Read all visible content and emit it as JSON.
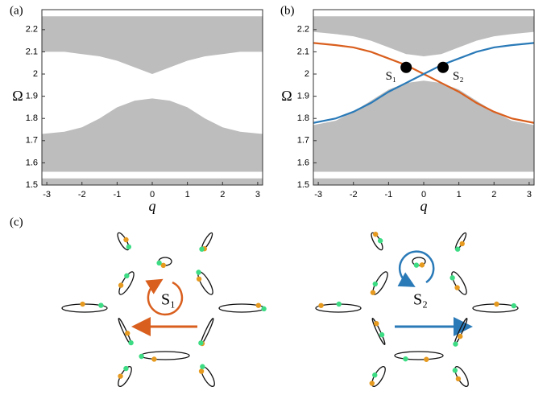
{
  "chart_data": [
    {
      "type": "band",
      "panel_label": "(a)",
      "x_label": "q",
      "y_label": "Ω",
      "xlim": [
        -3.14,
        3.14
      ],
      "ylim": [
        1.5,
        2.29
      ],
      "xticks": [
        -3,
        -2,
        -1,
        0,
        1,
        2,
        3
      ],
      "yticks": [
        1.5,
        1.6,
        1.7,
        1.8,
        1.9,
        2,
        2.1,
        2.2
      ],
      "band_color": "#bdbdbd",
      "x": [
        -3.14,
        -2.5,
        -2,
        -1.5,
        -1,
        -0.5,
        0,
        0.5,
        1,
        1.5,
        2,
        2.5,
        3.14
      ],
      "bands": [
        {
          "lower": [
            2.1,
            2.1,
            2.09,
            2.08,
            2.06,
            2.03,
            2.0,
            2.03,
            2.06,
            2.08,
            2.09,
            2.1,
            2.1
          ],
          "upper": [
            2.26,
            2.26,
            2.26,
            2.26,
            2.26,
            2.26,
            2.26,
            2.26,
            2.26,
            2.26,
            2.26,
            2.26,
            2.26
          ]
        },
        {
          "lower": [
            1.56,
            1.56,
            1.56,
            1.56,
            1.56,
            1.56,
            1.56,
            1.56,
            1.56,
            1.56,
            1.56,
            1.56,
            1.56
          ],
          "upper": [
            1.73,
            1.74,
            1.76,
            1.8,
            1.85,
            1.88,
            1.89,
            1.88,
            1.85,
            1.8,
            1.76,
            1.74,
            1.73
          ]
        },
        {
          "lower": [
            1.5,
            1.5,
            1.5,
            1.5,
            1.5,
            1.5,
            1.5,
            1.5,
            1.5,
            1.5,
            1.5,
            1.5,
            1.5
          ],
          "upper": [
            1.53,
            1.53,
            1.53,
            1.53,
            1.53,
            1.53,
            1.53,
            1.53,
            1.53,
            1.53,
            1.53,
            1.53,
            1.53
          ]
        }
      ]
    },
    {
      "type": "band",
      "panel_label": "(b)",
      "x_label": "q",
      "y_label": "Ω",
      "xlim": [
        -3.14,
        3.14
      ],
      "ylim": [
        1.5,
        2.29
      ],
      "xticks": [
        -3,
        -2,
        -1,
        0,
        1,
        2,
        3
      ],
      "yticks": [
        1.5,
        1.6,
        1.7,
        1.8,
        1.9,
        2,
        2.1,
        2.2
      ],
      "band_color": "#bdbdbd",
      "x": [
        -3.14,
        -2.5,
        -2,
        -1.5,
        -1,
        -0.5,
        0,
        0.5,
        1,
        1.5,
        2,
        2.5,
        3.14
      ],
      "bands": [
        {
          "lower": [
            2.19,
            2.18,
            2.17,
            2.15,
            2.12,
            2.09,
            2.08,
            2.09,
            2.12,
            2.15,
            2.17,
            2.18,
            2.19
          ],
          "upper": [
            2.26,
            2.26,
            2.26,
            2.26,
            2.26,
            2.26,
            2.26,
            2.26,
            2.26,
            2.26,
            2.26,
            2.26,
            2.26
          ]
        },
        {
          "lower": [
            1.56,
            1.56,
            1.56,
            1.56,
            1.56,
            1.56,
            1.56,
            1.56,
            1.56,
            1.56,
            1.56,
            1.56,
            1.56
          ],
          "upper": [
            1.77,
            1.79,
            1.83,
            1.88,
            1.93,
            1.96,
            1.97,
            1.96,
            1.93,
            1.88,
            1.83,
            1.79,
            1.77
          ]
        },
        {
          "lower": [
            1.5,
            1.5,
            1.5,
            1.5,
            1.5,
            1.5,
            1.5,
            1.5,
            1.5,
            1.5,
            1.5,
            1.5,
            1.5
          ],
          "upper": [
            1.53,
            1.53,
            1.53,
            1.53,
            1.53,
            1.53,
            1.53,
            1.53,
            1.53,
            1.53,
            1.53,
            1.53,
            1.53
          ]
        }
      ],
      "series": [
        {
          "color": "#d95f1e",
          "values": [
            2.14,
            2.13,
            2.12,
            2.1,
            2.07,
            2.04,
            2.0,
            1.96,
            1.92,
            1.87,
            1.83,
            1.8,
            1.78
          ]
        },
        {
          "color": "#2a7ab8",
          "values": [
            1.78,
            1.8,
            1.83,
            1.87,
            1.92,
            1.96,
            2.0,
            2.04,
            2.07,
            2.1,
            2.12,
            2.13,
            2.14
          ]
        }
      ],
      "points": [
        {
          "label": "S₁",
          "x": -0.5,
          "y": 2.03
        },
        {
          "label": "S₂",
          "x": 0.55,
          "y": 2.03
        }
      ]
    }
  ],
  "panel_c": {
    "label": "(c)",
    "left_label": "S₁",
    "right_label": "S₂"
  }
}
